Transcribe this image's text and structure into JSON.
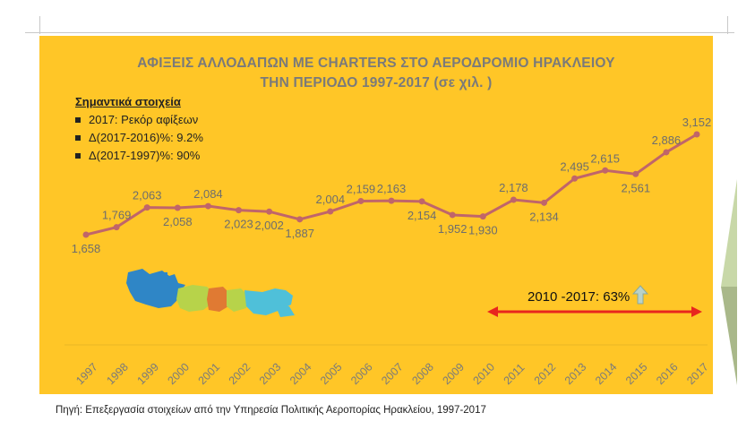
{
  "chart_data": {
    "type": "line",
    "title": "ΑΦΙΞΕΙΣ ΑΛΛΟΔΑΠΩΝ ΜΕ CHARTERS ΣΤΟ ΑΕΡΟΔΡΟΜΙΟ ΗΡΑΚΛΕΙΟΥ",
    "subtitle": "ΤΗΝ ΠΕΡΙΟΔΟ 1997-2017 (σε χιλ. )",
    "categories": [
      "1997",
      "1998",
      "1999",
      "2000",
      "2001",
      "2002",
      "2003",
      "2004",
      "2005",
      "2006",
      "2007",
      "2008",
      "2009",
      "2010",
      "2011",
      "2012",
      "2013",
      "2014",
      "2015",
      "2016",
      "2017"
    ],
    "series": [
      {
        "values": [
          1658,
          1769,
          2063,
          2058,
          2084,
          2023,
          2002,
          1887,
          2004,
          2159,
          2163,
          2154,
          1952,
          1930,
          2178,
          2134,
          2495,
          2615,
          2561,
          2886,
          3152
        ]
      }
    ],
    "data_labels": [
      "1,658",
      "1,769",
      "2,063",
      "2,058",
      "2,084",
      "2,023",
      "2,002",
      "1,887",
      "2,004",
      "2,159",
      "2,163",
      "2,154",
      "1,952",
      "1,930",
      "2,178",
      "2,134",
      "2,495",
      "2,615",
      "2,561",
      "2,886",
      "3,152"
    ],
    "xlabel": "",
    "ylabel": "",
    "ylim": [
      1400,
      3300
    ],
    "grid": false
  },
  "key_facts": {
    "title": "Σημαντικά στοιχεία",
    "items": [
      "2017: Ρεκόρ αφίξεων",
      "Δ(2017-2016)%: 9.2%",
      "Δ(2017-1997)%: 90%"
    ]
  },
  "callout": {
    "text": "2010 -2017: 63%"
  },
  "source": "Πηγή: Επεξεργασία στοιχείων από την Υπηρεσία Πολιτικής Αεροπορίας Ηρακλείου, 1997-2017",
  "colors": {
    "background": "#FFC627",
    "line": "#C0656A",
    "title": "#7a7a7a",
    "tick": "#7a7a7a",
    "arrow": "#E8261E",
    "up_arrow": "#B9D2C8"
  },
  "icons": {
    "map": "crete-map-icon",
    "up": "up-arrow-icon",
    "range": "double-arrow-icon"
  }
}
